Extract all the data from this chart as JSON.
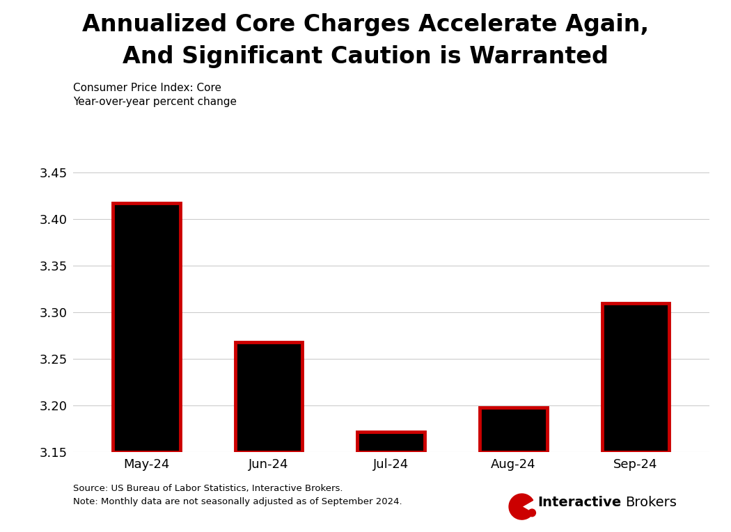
{
  "title_line1": "Annualized Core Charges Accelerate Again,",
  "title_line2": "And Significant Caution is Warranted",
  "subtitle_line1": "Consumer Price Index: Core",
  "subtitle_line2": "Year-over-year percent change",
  "categories": [
    "May-24",
    "Jun-24",
    "Jul-24",
    "Aug-24",
    "Sep-24"
  ],
  "values": [
    3.417,
    3.268,
    3.172,
    3.198,
    3.31
  ],
  "bar_color": "#000000",
  "bar_edge_color": "#cc0000",
  "bar_edge_width": 3.5,
  "ylim_min": 3.15,
  "ylim_max": 3.475,
  "yticks": [
    3.15,
    3.2,
    3.25,
    3.3,
    3.35,
    3.4,
    3.45
  ],
  "background_color": "#ffffff",
  "grid_color": "#cccccc",
  "title_fontsize": 24,
  "subtitle_fontsize": 11,
  "tick_fontsize": 13,
  "source_text": "Source: US Bureau of Labor Statistics, Interactive Brokers.",
  "note_text": "Note: Monthly data are not seasonally adjusted as of September 2024.",
  "ib_logo_color": "#cc0000"
}
